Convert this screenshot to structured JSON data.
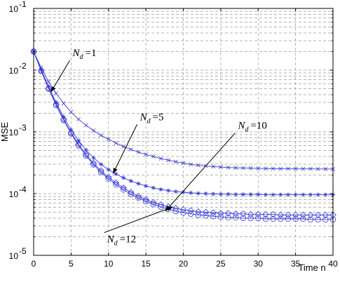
{
  "chart_data": {
    "type": "line",
    "xlabel": "Time n",
    "ylabel": "MSE",
    "xlim": [
      0,
      40
    ],
    "ylim": [
      1e-05,
      0.1
    ],
    "yscale": "log",
    "grid": true,
    "x_ticks": [
      0,
      5,
      10,
      15,
      20,
      25,
      30,
      35,
      40
    ],
    "y_ticks": [
      {
        "base": "10",
        "exp": "-5",
        "value": 1e-05
      },
      {
        "base": "10",
        "exp": "-4",
        "value": 0.0001
      },
      {
        "base": "10",
        "exp": "-3",
        "value": 0.001
      },
      {
        "base": "10",
        "exp": "-2",
        "value": 0.01
      },
      {
        "base": "10",
        "exp": "-1",
        "value": 0.1
      }
    ],
    "line_color": "#3b3bd8",
    "x": [
      0,
      1,
      2,
      3,
      4,
      5,
      6,
      7,
      8,
      9,
      10,
      11,
      12,
      13,
      14,
      15,
      16,
      17,
      18,
      19,
      20,
      21,
      22,
      23,
      24,
      25,
      26,
      27,
      28,
      29,
      30,
      31,
      32,
      33,
      34,
      35,
      36,
      37,
      38,
      39,
      40
    ],
    "series": [
      {
        "marker": "x",
        "values": [
          0.02,
          0.011,
          0.0065,
          0.0042,
          0.0029,
          0.0021,
          0.0016,
          0.00128,
          0.00105,
          0.00088,
          0.00076,
          0.00066,
          0.00058,
          0.00052,
          0.00047,
          0.00043,
          0.0004,
          0.00037,
          0.000348,
          0.000328,
          0.000312,
          0.000298,
          0.000288,
          0.00028,
          0.000274,
          0.000269,
          0.000265,
          0.000262,
          0.00026,
          0.000258,
          0.000256,
          0.000255,
          0.000254,
          0.000253,
          0.000253,
          0.000252,
          0.000252,
          0.000252,
          0.000251,
          0.000251,
          0.00025
        ]
      },
      {
        "marker": "asterisk",
        "values": [
          0.02,
          0.0102,
          0.0054,
          0.003,
          0.00175,
          0.00108,
          0.00072,
          0.00051,
          0.00038,
          0.000298,
          0.000245,
          0.000208,
          0.00018,
          0.00016,
          0.000145,
          0.000133,
          0.000124,
          0.000117,
          0.000112,
          0.000108,
          0.000105,
          0.000103,
          0.000101,
          0.0001,
          9.9e-05,
          9.8e-05,
          9.8e-05,
          9.7e-05,
          9.7e-05,
          9.7e-05,
          9.7e-05,
          9.6e-05,
          9.6e-05,
          9.6e-05,
          9.6e-05,
          9.6e-05,
          9.6e-05,
          9.6e-05,
          9.6e-05,
          9.6e-05,
          9.6e-05
        ]
      },
      {
        "marker": "diamond",
        "values": [
          0.02,
          0.0098,
          0.0051,
          0.0028,
          0.0016,
          0.00097,
          0.00063,
          0.00043,
          0.00031,
          0.000235,
          0.000185,
          0.00015,
          0.000124,
          0.000105,
          9.1e-05,
          8e-05,
          7.2e-05,
          6.6e-05,
          6.1e-05,
          5.8e-05,
          5.5e-05,
          5.3e-05,
          5.1e-05,
          5e-05,
          4.9e-05,
          4.8e-05,
          4.8e-05,
          4.7e-05,
          4.7e-05,
          4.6e-05,
          4.6e-05,
          4.6e-05,
          4.6e-05,
          4.5e-05,
          4.5e-05,
          4.5e-05,
          4.5e-05,
          4.5e-05,
          4.5e-05,
          4.5e-05,
          4.5e-05
        ]
      },
      {
        "marker": "circle",
        "values": [
          0.02,
          0.0097,
          0.005,
          0.0027,
          0.00155,
          0.00094,
          0.0006,
          0.00041,
          0.000295,
          0.000222,
          0.000174,
          0.00014,
          0.000116,
          9.8e-05,
          8.5e-05,
          7.5e-05,
          6.7e-05,
          6.1e-05,
          5.6e-05,
          5.2e-05,
          4.9e-05,
          4.7e-05,
          4.5e-05,
          4.4e-05,
          4.3e-05,
          4.2e-05,
          4.1e-05,
          4.1e-05,
          4e-05,
          4e-05,
          4e-05,
          3.9e-05,
          3.9e-05,
          3.9e-05,
          3.9e-05,
          3.9e-05,
          3.9e-05,
          3.8e-05,
          3.8e-05,
          3.8e-05,
          3.8e-05
        ]
      }
    ],
    "annotations": [
      {
        "sym": "N",
        "sub": "d",
        "eq": "=1",
        "x": 5.2,
        "y": 0.0168,
        "arrow_to": [
          2.3,
          0.0044
        ]
      },
      {
        "sym": "N",
        "sub": "d",
        "eq": "=5",
        "x": 14.2,
        "y": 0.00155,
        "arrow_to": [
          10.6,
          0.00021
        ]
      },
      {
        "sym": "N",
        "sub": "d",
        "eq": "=10",
        "x": 27.3,
        "y": 0.00112,
        "arrow_to": [
          17.6,
          5.2e-05
        ]
      },
      {
        "sym": "N",
        "sub": "d",
        "eq": "=12",
        "x": 9.8,
        "y": 1.62e-05,
        "arrow_to": [
          18.6,
          6.1e-05
        ]
      }
    ]
  }
}
